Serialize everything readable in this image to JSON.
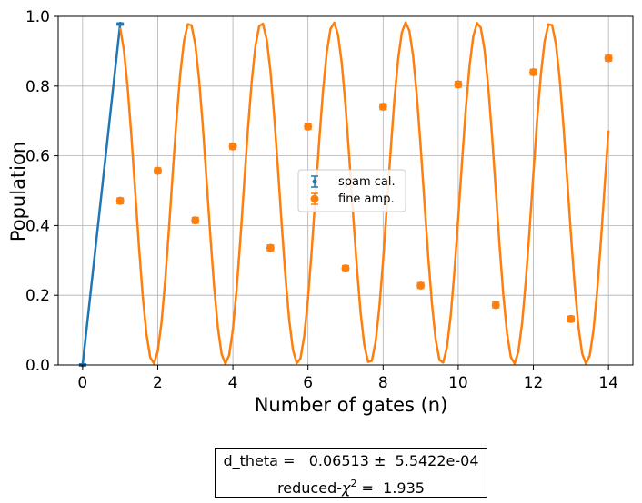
{
  "chart_data": {
    "type": "scatter",
    "xlabel": "Number of gates (n)",
    "ylabel": "Population",
    "xlim": [
      -0.65,
      14.65
    ],
    "ylim": [
      0.0,
      1.0
    ],
    "xticks": [
      0,
      2,
      4,
      6,
      8,
      10,
      12,
      14
    ],
    "yticks": [
      0.0,
      0.2,
      0.4,
      0.6,
      0.8,
      1.0
    ],
    "xtick_labels": [
      "0",
      "2",
      "4",
      "6",
      "8",
      "10",
      "12",
      "14"
    ],
    "ytick_labels": [
      "0.0",
      "0.2",
      "0.4",
      "0.6",
      "0.8",
      "1.0"
    ],
    "grid": true,
    "legend_position": "center",
    "series": [
      {
        "name": "spam cal.",
        "color": "#1f77b4",
        "marker": "small-dot",
        "x": [
          0,
          1
        ],
        "y": [
          0.0,
          0.978
        ],
        "yerr": [
          0.003,
          0.003
        ],
        "xerr": [
          0.0,
          0.1
        ]
      },
      {
        "name": "fine amp.",
        "color": "#ff7f0e",
        "marker": "circle",
        "x": [
          1,
          2,
          3,
          4,
          5,
          6,
          7,
          8,
          9,
          10,
          11,
          12,
          13,
          14
        ],
        "y": [
          0.471,
          0.557,
          0.415,
          0.627,
          0.336,
          0.684,
          0.277,
          0.741,
          0.228,
          0.805,
          0.172,
          0.84,
          0.132,
          0.88
        ],
        "yerr": [
          0.008,
          0.008,
          0.008,
          0.008,
          0.008,
          0.008,
          0.008,
          0.008,
          0.008,
          0.008,
          0.008,
          0.008,
          0.008,
          0.008
        ]
      }
    ],
    "fit_lines": [
      {
        "name": "spam cal. fit",
        "color": "#1f77b4",
        "model": "linear",
        "x_range": [
          0,
          1
        ],
        "y_range": [
          0.0,
          0.978
        ]
      },
      {
        "name": "fine amp. fit",
        "color": "#ff7f0e",
        "model": "oscillation",
        "x_range": [
          1,
          14
        ],
        "amplitude": 0.4894,
        "offset": 0.4931,
        "phase": 0.1227,
        "d_theta": 0.06513
      }
    ]
  },
  "fit_result": {
    "line1": "d_theta =   0.06513 ±  5.5422e-04",
    "line2_prefix": "reduced-",
    "chi_symbol": "χ",
    "chi_power": "2",
    "line2_suffix": " =  1.935"
  }
}
